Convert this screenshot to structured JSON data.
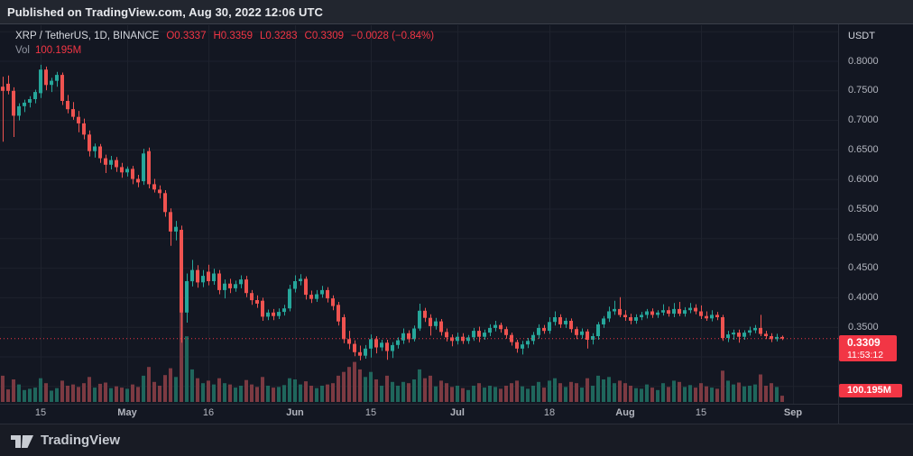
{
  "header": {
    "published_text": "Published on TradingView.com, Aug 30, 2022 12:06 UTC"
  },
  "legend": {
    "symbol_text": "XRP / TetherUS, 1D, BINANCE",
    "open": "O0.3337",
    "high": "H0.3359",
    "low": "L0.3283",
    "close": "C0.3309",
    "change": "−0.0028 (−0.84%)",
    "vol_label": "Vol",
    "vol_value": "100.195M"
  },
  "axis": {
    "currency_label": "USDT",
    "price_ticks": [
      {
        "label": "0.8000",
        "price": 0.8
      },
      {
        "label": "0.7500",
        "price": 0.75
      },
      {
        "label": "0.7000",
        "price": 0.7
      },
      {
        "label": "0.6500",
        "price": 0.65
      },
      {
        "label": "0.6000",
        "price": 0.6
      },
      {
        "label": "0.5500",
        "price": 0.55
      },
      {
        "label": "0.5000",
        "price": 0.5
      },
      {
        "label": "0.4500",
        "price": 0.45
      },
      {
        "label": "0.4000",
        "price": 0.4
      },
      {
        "label": "0.3500",
        "price": 0.35
      },
      {
        "label": "0.3000",
        "price": 0.3
      }
    ],
    "grid_prices": [
      0.85,
      0.8,
      0.75,
      0.7,
      0.65,
      0.6,
      0.55,
      0.5,
      0.45,
      0.4,
      0.35,
      0.3,
      0.25
    ],
    "time_ticks": [
      {
        "label": "15",
        "index": 7,
        "bold": false
      },
      {
        "label": "May",
        "index": 23,
        "bold": true
      },
      {
        "label": "16",
        "index": 38,
        "bold": false
      },
      {
        "label": "Jun",
        "index": 54,
        "bold": true
      },
      {
        "label": "15",
        "index": 68,
        "bold": false
      },
      {
        "label": "Jul",
        "index": 84,
        "bold": true
      },
      {
        "label": "18",
        "index": 101,
        "bold": false
      },
      {
        "label": "Aug",
        "index": 115,
        "bold": true
      },
      {
        "label": "15",
        "index": 129,
        "bold": false
      },
      {
        "label": "Sep",
        "index": 146,
        "bold": true
      }
    ]
  },
  "price_label": {
    "price": "0.3309",
    "countdown": "11:53:12"
  },
  "volume_label": "100.195M",
  "footer": {
    "brand": "TradingView"
  },
  "colors": {
    "background": "#131722",
    "up": "#26a69a",
    "down": "#ef5350",
    "vol_up": "#1f665c",
    "vol_down": "#7c3a42",
    "accent_red": "#f23645",
    "grid": "#1e222d",
    "border": "#2a2e39"
  },
  "chart_data": {
    "type": "candlestick",
    "title": "XRP / TetherUS, 1D, BINANCE",
    "interval": "1D",
    "quote_currency": "USDT",
    "start_date": "2022-04-08",
    "end_date": "2022-08-30",
    "frequency": "daily",
    "last_price": 0.3309,
    "ylim": [
      0.236,
      0.858
    ],
    "legend_position": "top-left",
    "grid": true,
    "volume_unit": "M",
    "columns": [
      "open",
      "high",
      "low",
      "close",
      "volume_M"
    ],
    "candles": [
      [
        0.757,
        0.774,
        0.664,
        0.75,
        420
      ],
      [
        0.762,
        0.776,
        0.744,
        0.75,
        200
      ],
      [
        0.75,
        0.756,
        0.672,
        0.708,
        360
      ],
      [
        0.708,
        0.729,
        0.7,
        0.724,
        280
      ],
      [
        0.724,
        0.735,
        0.714,
        0.73,
        190
      ],
      [
        0.73,
        0.741,
        0.722,
        0.736,
        210
      ],
      [
        0.736,
        0.752,
        0.729,
        0.748,
        230
      ],
      [
        0.746,
        0.794,
        0.738,
        0.786,
        380
      ],
      [
        0.786,
        0.791,
        0.751,
        0.76,
        300
      ],
      [
        0.76,
        0.772,
        0.748,
        0.767,
        180
      ],
      [
        0.767,
        0.782,
        0.757,
        0.777,
        220
      ],
      [
        0.777,
        0.781,
        0.726,
        0.733,
        340
      ],
      [
        0.733,
        0.743,
        0.712,
        0.719,
        260
      ],
      [
        0.719,
        0.731,
        0.701,
        0.706,
        280
      ],
      [
        0.706,
        0.716,
        0.68,
        0.695,
        240
      ],
      [
        0.695,
        0.703,
        0.668,
        0.676,
        300
      ],
      [
        0.676,
        0.683,
        0.639,
        0.648,
        400
      ],
      [
        0.648,
        0.661,
        0.637,
        0.656,
        230
      ],
      [
        0.656,
        0.66,
        0.628,
        0.636,
        290
      ],
      [
        0.636,
        0.642,
        0.611,
        0.625,
        310
      ],
      [
        0.625,
        0.64,
        0.617,
        0.633,
        220
      ],
      [
        0.633,
        0.638,
        0.613,
        0.621,
        250
      ],
      [
        0.621,
        0.628,
        0.603,
        0.612,
        230
      ],
      [
        0.612,
        0.622,
        0.605,
        0.618,
        210
      ],
      [
        0.618,
        0.623,
        0.592,
        0.601,
        280
      ],
      [
        0.601,
        0.608,
        0.587,
        0.595,
        240
      ],
      [
        0.597,
        0.652,
        0.591,
        0.644,
        420
      ],
      [
        0.648,
        0.654,
        0.585,
        0.592,
        560
      ],
      [
        0.592,
        0.601,
        0.578,
        0.583,
        320
      ],
      [
        0.583,
        0.59,
        0.568,
        0.577,
        260
      ],
      [
        0.577,
        0.582,
        0.537,
        0.545,
        430
      ],
      [
        0.545,
        0.551,
        0.488,
        0.512,
        540
      ],
      [
        0.512,
        0.53,
        0.497,
        0.52,
        400
      ],
      [
        0.515,
        0.522,
        0.324,
        0.375,
        1500
      ],
      [
        0.375,
        0.441,
        0.358,
        0.428,
        1050
      ],
      [
        0.428,
        0.464,
        0.419,
        0.447,
        520
      ],
      [
        0.447,
        0.455,
        0.417,
        0.426,
        380
      ],
      [
        0.426,
        0.447,
        0.418,
        0.437,
        300
      ],
      [
        0.444,
        0.456,
        0.421,
        0.428,
        340
      ],
      [
        0.428,
        0.449,
        0.422,
        0.441,
        280
      ],
      [
        0.441,
        0.447,
        0.406,
        0.413,
        380
      ],
      [
        0.413,
        0.431,
        0.399,
        0.424,
        300
      ],
      [
        0.424,
        0.432,
        0.408,
        0.416,
        280
      ],
      [
        0.416,
        0.429,
        0.41,
        0.423,
        230
      ],
      [
        0.423,
        0.438,
        0.416,
        0.431,
        260
      ],
      [
        0.431,
        0.437,
        0.401,
        0.408,
        350
      ],
      [
        0.408,
        0.413,
        0.388,
        0.396,
        280
      ],
      [
        0.396,
        0.404,
        0.383,
        0.39,
        240
      ],
      [
        0.395,
        0.4,
        0.361,
        0.368,
        400
      ],
      [
        0.368,
        0.38,
        0.362,
        0.375,
        260
      ],
      [
        0.375,
        0.381,
        0.362,
        0.369,
        230
      ],
      [
        0.369,
        0.382,
        0.364,
        0.376,
        240
      ],
      [
        0.376,
        0.388,
        0.37,
        0.382,
        270
      ],
      [
        0.382,
        0.422,
        0.377,
        0.415,
        380
      ],
      [
        0.415,
        0.438,
        0.409,
        0.428,
        360
      ],
      [
        0.428,
        0.44,
        0.421,
        0.432,
        280
      ],
      [
        0.432,
        0.436,
        0.397,
        0.405,
        330
      ],
      [
        0.405,
        0.412,
        0.391,
        0.398,
        260
      ],
      [
        0.398,
        0.413,
        0.393,
        0.406,
        220
      ],
      [
        0.406,
        0.42,
        0.4,
        0.413,
        260
      ],
      [
        0.413,
        0.418,
        0.392,
        0.399,
        280
      ],
      [
        0.399,
        0.404,
        0.379,
        0.386,
        300
      ],
      [
        0.388,
        0.393,
        0.353,
        0.36,
        420
      ],
      [
        0.367,
        0.372,
        0.323,
        0.33,
        480
      ],
      [
        0.33,
        0.344,
        0.313,
        0.322,
        560
      ],
      [
        0.322,
        0.328,
        0.301,
        0.308,
        640
      ],
      [
        0.308,
        0.319,
        0.294,
        0.302,
        520
      ],
      [
        0.302,
        0.32,
        0.297,
        0.314,
        400
      ],
      [
        0.314,
        0.338,
        0.299,
        0.33,
        480
      ],
      [
        0.33,
        0.335,
        0.306,
        0.316,
        360
      ],
      [
        0.316,
        0.329,
        0.31,
        0.324,
        260
      ],
      [
        0.324,
        0.329,
        0.295,
        0.31,
        420
      ],
      [
        0.31,
        0.325,
        0.298,
        0.32,
        320
      ],
      [
        0.32,
        0.333,
        0.314,
        0.328,
        260
      ],
      [
        0.328,
        0.348,
        0.322,
        0.34,
        320
      ],
      [
        0.34,
        0.345,
        0.324,
        0.33,
        300
      ],
      [
        0.33,
        0.353,
        0.326,
        0.348,
        360
      ],
      [
        0.348,
        0.39,
        0.344,
        0.378,
        520
      ],
      [
        0.378,
        0.383,
        0.359,
        0.366,
        380
      ],
      [
        0.366,
        0.372,
        0.336,
        0.352,
        420
      ],
      [
        0.352,
        0.366,
        0.346,
        0.36,
        250
      ],
      [
        0.36,
        0.364,
        0.336,
        0.342,
        340
      ],
      [
        0.342,
        0.348,
        0.326,
        0.333,
        300
      ],
      [
        0.333,
        0.338,
        0.318,
        0.327,
        240
      ],
      [
        0.327,
        0.341,
        0.321,
        0.334,
        260
      ],
      [
        0.334,
        0.34,
        0.322,
        0.327,
        220
      ],
      [
        0.327,
        0.337,
        0.322,
        0.333,
        190
      ],
      [
        0.333,
        0.349,
        0.327,
        0.344,
        260
      ],
      [
        0.344,
        0.351,
        0.325,
        0.334,
        300
      ],
      [
        0.334,
        0.346,
        0.329,
        0.341,
        230
      ],
      [
        0.341,
        0.355,
        0.335,
        0.349,
        260
      ],
      [
        0.349,
        0.361,
        0.343,
        0.354,
        240
      ],
      [
        0.354,
        0.358,
        0.341,
        0.347,
        210
      ],
      [
        0.347,
        0.351,
        0.331,
        0.337,
        260
      ],
      [
        0.337,
        0.341,
        0.319,
        0.325,
        300
      ],
      [
        0.325,
        0.329,
        0.307,
        0.314,
        340
      ],
      [
        0.314,
        0.327,
        0.304,
        0.321,
        250
      ],
      [
        0.321,
        0.332,
        0.315,
        0.327,
        210
      ],
      [
        0.327,
        0.342,
        0.321,
        0.337,
        260
      ],
      [
        0.337,
        0.355,
        0.331,
        0.349,
        320
      ],
      [
        0.349,
        0.354,
        0.339,
        0.344,
        230
      ],
      [
        0.344,
        0.367,
        0.339,
        0.359,
        340
      ],
      [
        0.359,
        0.377,
        0.353,
        0.367,
        380
      ],
      [
        0.367,
        0.372,
        0.349,
        0.355,
        300
      ],
      [
        0.355,
        0.366,
        0.349,
        0.361,
        240
      ],
      [
        0.361,
        0.365,
        0.341,
        0.347,
        320
      ],
      [
        0.347,
        0.351,
        0.33,
        0.337,
        300
      ],
      [
        0.337,
        0.348,
        0.331,
        0.343,
        230
      ],
      [
        0.343,
        0.347,
        0.314,
        0.329,
        380
      ],
      [
        0.329,
        0.34,
        0.321,
        0.335,
        260
      ],
      [
        0.335,
        0.359,
        0.329,
        0.355,
        420
      ],
      [
        0.355,
        0.369,
        0.349,
        0.365,
        360
      ],
      [
        0.365,
        0.385,
        0.359,
        0.377,
        400
      ],
      [
        0.377,
        0.395,
        0.371,
        0.381,
        300
      ],
      [
        0.381,
        0.401,
        0.367,
        0.371,
        340
      ],
      [
        0.371,
        0.379,
        0.361,
        0.367,
        300
      ],
      [
        0.367,
        0.373,
        0.355,
        0.361,
        260
      ],
      [
        0.361,
        0.372,
        0.356,
        0.367,
        220
      ],
      [
        0.367,
        0.376,
        0.362,
        0.371,
        210
      ],
      [
        0.371,
        0.381,
        0.365,
        0.377,
        280
      ],
      [
        0.377,
        0.382,
        0.366,
        0.371,
        230
      ],
      [
        0.371,
        0.379,
        0.366,
        0.375,
        190
      ],
      [
        0.375,
        0.389,
        0.37,
        0.379,
        300
      ],
      [
        0.379,
        0.385,
        0.368,
        0.373,
        240
      ],
      [
        0.373,
        0.391,
        0.367,
        0.381,
        340
      ],
      [
        0.381,
        0.393,
        0.369,
        0.373,
        320
      ],
      [
        0.373,
        0.384,
        0.368,
        0.379,
        240
      ],
      [
        0.379,
        0.391,
        0.374,
        0.383,
        270
      ],
      [
        0.383,
        0.389,
        0.372,
        0.377,
        230
      ],
      [
        0.377,
        0.387,
        0.364,
        0.369,
        300
      ],
      [
        0.369,
        0.377,
        0.361,
        0.365,
        250
      ],
      [
        0.365,
        0.379,
        0.36,
        0.371,
        230
      ],
      [
        0.371,
        0.376,
        0.362,
        0.367,
        210
      ],
      [
        0.367,
        0.371,
        0.327,
        0.332,
        500
      ],
      [
        0.332,
        0.344,
        0.325,
        0.338,
        340
      ],
      [
        0.338,
        0.346,
        0.329,
        0.341,
        280
      ],
      [
        0.341,
        0.346,
        0.324,
        0.334,
        310
      ],
      [
        0.334,
        0.345,
        0.329,
        0.341,
        250
      ],
      [
        0.341,
        0.351,
        0.336,
        0.345,
        260
      ],
      [
        0.345,
        0.354,
        0.34,
        0.349,
        280
      ],
      [
        0.349,
        0.371,
        0.335,
        0.339,
        440
      ],
      [
        0.339,
        0.344,
        0.33,
        0.335,
        260
      ],
      [
        0.335,
        0.34,
        0.325,
        0.33,
        300
      ],
      [
        0.33,
        0.339,
        0.326,
        0.3337,
        240
      ],
      [
        0.3337,
        0.3359,
        0.3283,
        0.3309,
        100.195
      ]
    ]
  }
}
